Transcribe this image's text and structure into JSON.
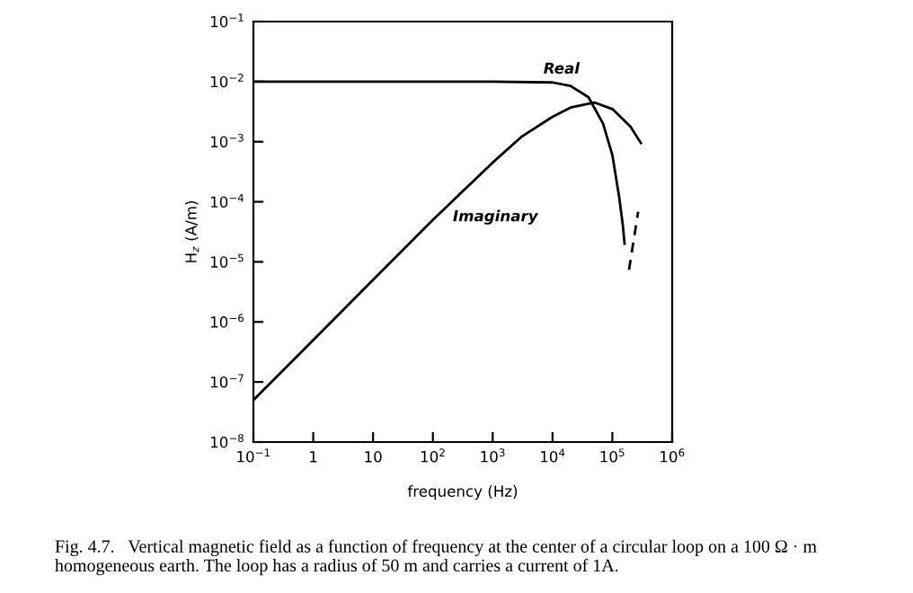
{
  "chart_data": {
    "type": "line",
    "xlabel": "frequency (Hz)",
    "ylabel": "H$_{z}$ (A/m)",
    "log": "xy",
    "xlim": [
      0.1,
      1000000
    ],
    "ylim": [
      1e-08,
      0.1
    ],
    "xticks": [
      {
        "value": 0.1,
        "label": "10$^{−1}$"
      },
      1,
      10,
      {
        "value": 100,
        "label": "10$^{2}$"
      },
      {
        "value": 1000,
        "label": "10$^{3}$"
      },
      {
        "value": 10000,
        "label": "10$^{4}$"
      },
      {
        "value": 100000,
        "label": "10$^{5}$"
      },
      {
        "value": 1000000,
        "label": "10$^{6}$"
      }
    ],
    "yticks": [
      {
        "value": 1e-08,
        "label": "10$^{−8}$"
      },
      {
        "value": 1e-07,
        "label": "10$^{−7}$"
      },
      {
        "value": 1e-06,
        "label": "10$^{−6}$"
      },
      {
        "value": 1e-05,
        "label": "10$^{−5}$"
      },
      {
        "value": 0.0001,
        "label": "10$^{−4}$"
      },
      {
        "value": 0.001,
        "label": "10$^{−3}$"
      },
      {
        "value": 0.01,
        "label": "10$^{−2}$"
      },
      {
        "value": 0.1,
        "label": "10$^{−1}$"
      }
    ],
    "grid": false,
    "legend": false,
    "series": [
      {
        "name": "Real",
        "color": "#000000",
        "line_style": "solid",
        "x": [
          0.1,
          1000,
          10000,
          20000,
          40000,
          70000,
          100000,
          130000,
          150000,
          160000
        ],
        "values": [
          0.01,
          0.01,
          0.0097,
          0.0085,
          0.0055,
          0.002,
          0.0006,
          0.00012,
          4e-05,
          2e-05
        ]
      },
      {
        "color": "#000000",
        "line_style": "dashed",
        "x": [
          190000,
          270000
        ],
        "values": [
          7.4e-06,
          6.8e-05
        ]
      },
      {
        "name": "Imaginary",
        "color": "#000000",
        "line_style": "solid",
        "x": [
          0.1,
          1,
          10,
          100,
          1000,
          3000,
          10000,
          20000,
          50000,
          100000,
          200000,
          300000
        ],
        "values": [
          5e-08,
          5e-07,
          5e-06,
          5e-05,
          0.00045,
          0.0012,
          0.0026,
          0.0037,
          0.0045,
          0.0035,
          0.0018,
          0.00095
        ]
      }
    ],
    "annotations": [
      "Fig. 4.7.   Vertical magnetic field as a function of frequency at the center of a circular loop on a 100 Ω · m homogeneous earth. The loop has a radius of 50 m and carries a current of 1A."
    ]
  }
}
